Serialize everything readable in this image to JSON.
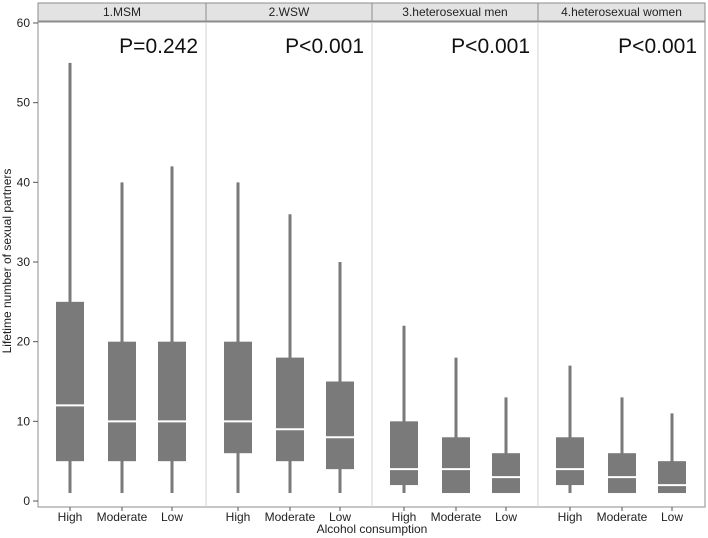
{
  "chart_data": {
    "type": "box",
    "xlabel": "Alcohol consumption",
    "ylabel": "Lifetime number of sexual partners",
    "ylim": [
      0,
      60
    ],
    "yticks": [
      "0",
      "10",
      "20",
      "30",
      "40",
      "50",
      "60"
    ],
    "grid": false,
    "categories": [
      "High",
      "Moderate",
      "Low"
    ],
    "colors": {
      "box": "#7a7a7a",
      "median": "#ffffff",
      "strip": "#e3e3e3",
      "border": "#8c8c8c"
    },
    "panels": [
      {
        "label": "1.MSM",
        "pvalue": "P=0.242",
        "boxes": [
          {
            "category": "High",
            "min": 1,
            "q1": 5,
            "median": 12,
            "q3": 25,
            "max": 55
          },
          {
            "category": "Moderate",
            "min": 1,
            "q1": 5,
            "median": 10,
            "q3": 20,
            "max": 40
          },
          {
            "category": "Low",
            "min": 1,
            "q1": 5,
            "median": 10,
            "q3": 20,
            "max": 42
          }
        ]
      },
      {
        "label": "2.WSW",
        "pvalue": "P<0.001",
        "boxes": [
          {
            "category": "High",
            "min": 1,
            "q1": 6,
            "median": 10,
            "q3": 20,
            "max": 40
          },
          {
            "category": "Moderate",
            "min": 1,
            "q1": 5,
            "median": 9,
            "q3": 18,
            "max": 36
          },
          {
            "category": "Low",
            "min": 1,
            "q1": 4,
            "median": 8,
            "q3": 15,
            "max": 30
          }
        ]
      },
      {
        "label": "3.heterosexual men",
        "pvalue": "P<0.001",
        "boxes": [
          {
            "category": "High",
            "min": 1,
            "q1": 2,
            "median": 4,
            "q3": 10,
            "max": 22
          },
          {
            "category": "Moderate",
            "min": 1,
            "q1": 1,
            "median": 4,
            "q3": 8,
            "max": 18
          },
          {
            "category": "Low",
            "min": 1,
            "q1": 1,
            "median": 3,
            "q3": 6,
            "max": 13
          }
        ]
      },
      {
        "label": "4.heterosexual women",
        "pvalue": "P<0.001",
        "boxes": [
          {
            "category": "High",
            "min": 1,
            "q1": 2,
            "median": 4,
            "q3": 8,
            "max": 17
          },
          {
            "category": "Moderate",
            "min": 1,
            "q1": 1,
            "median": 3,
            "q3": 6,
            "max": 13
          },
          {
            "category": "Low",
            "min": 1,
            "q1": 1,
            "median": 2,
            "q3": 5,
            "max": 11
          }
        ]
      }
    ]
  }
}
